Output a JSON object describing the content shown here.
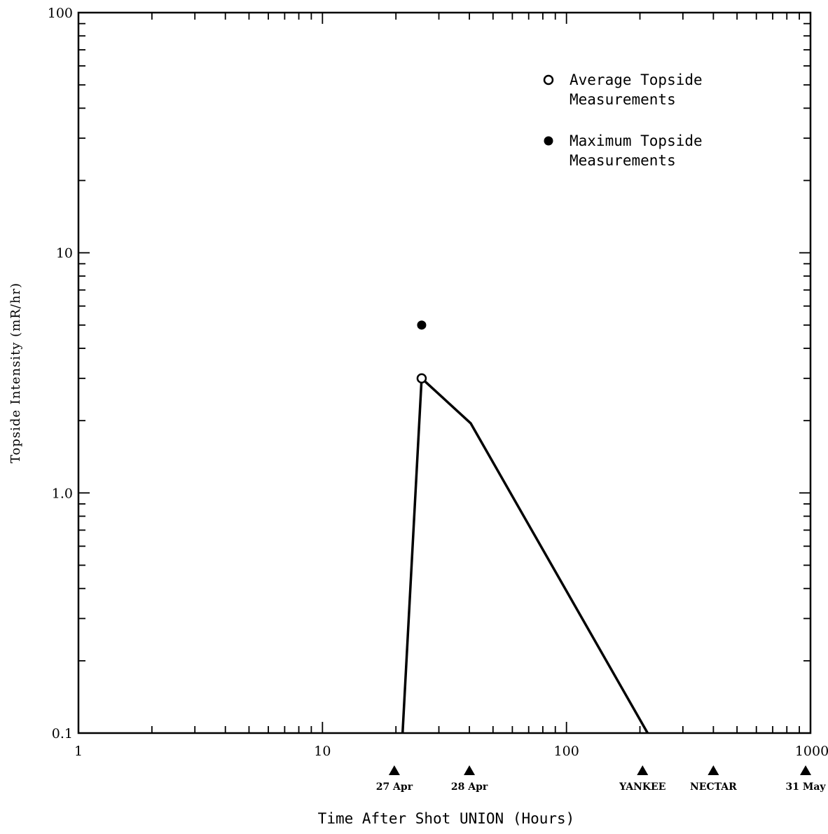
{
  "chart_data": {
    "type": "line",
    "title": "",
    "xlabel": "Time After Shot UNION (Hours)",
    "ylabel": "Topside Intensity (mR/hr)",
    "x_scale": "log",
    "y_scale": "log",
    "xlim": [
      1,
      1000
    ],
    "ylim": [
      0.1,
      100
    ],
    "x_ticks": [
      {
        "value": 1,
        "label": "1"
      },
      {
        "value": 10,
        "label": "10"
      },
      {
        "value": 100,
        "label": "100"
      },
      {
        "value": 1000,
        "label": "1000"
      }
    ],
    "y_ticks": [
      {
        "value": 0.1,
        "label": "0.1"
      },
      {
        "value": 1,
        "label": "1.0"
      },
      {
        "value": 10,
        "label": "10"
      },
      {
        "value": 100,
        "label": "100"
      }
    ],
    "grid": false,
    "legend_position": "top-right",
    "series": [
      {
        "name": "Average Topside Measurements",
        "legend_label_lines": [
          "Average Topside",
          "Measurements"
        ],
        "marker": "open-circle",
        "color": "#000000",
        "line": [
          {
            "x": 21.3,
            "y": 0.1
          },
          {
            "x": 25.5,
            "y": 3.0
          },
          {
            "x": 40.5,
            "y": 1.95
          },
          {
            "x": 215,
            "y": 0.1
          }
        ],
        "points": [
          {
            "x": 25.5,
            "y": 3.0
          }
        ]
      },
      {
        "name": "Maximum Topside Measurements",
        "legend_label_lines": [
          "Maximum Topside",
          "Measurements"
        ],
        "marker": "filled-circle",
        "color": "#000000",
        "points": [
          {
            "x": 25.5,
            "y": 5.0
          }
        ]
      }
    ],
    "event_markers": [
      {
        "x": 19.7,
        "label": "27 Apr"
      },
      {
        "x": 40,
        "label": "28 Apr"
      },
      {
        "x": 205,
        "label": "YANKEE"
      },
      {
        "x": 400,
        "label": "NECTAR"
      },
      {
        "x": 955,
        "label": "31 May"
      }
    ]
  }
}
